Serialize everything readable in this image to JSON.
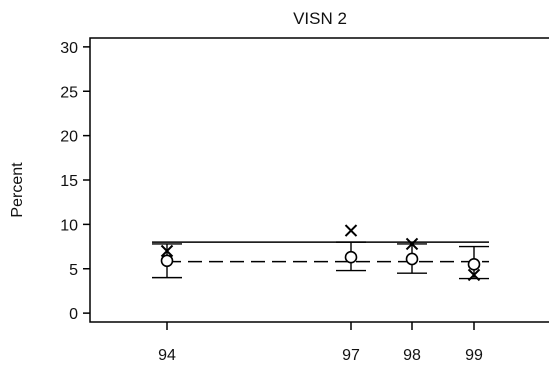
{
  "chart_data": {
    "type": "scatter",
    "title": "VISN 2",
    "xlabel": "",
    "ylabel": "Percent",
    "x_ticks": [
      "94",
      "97",
      "98",
      "99"
    ],
    "y_ticks": [
      0,
      5,
      10,
      15,
      20,
      25,
      30
    ],
    "ylim": [
      -1,
      31
    ],
    "grid": false,
    "legend": "none",
    "upper_limit_line": {
      "from": "94",
      "to": "99",
      "value": 8.0,
      "style": "solid"
    },
    "center_line": {
      "from": "94",
      "to": "99",
      "value": 5.8,
      "style": "dashed"
    },
    "circle_points": [
      {
        "x": "94",
        "value": 5.9,
        "lower": 4.0,
        "upper": 7.8
      },
      {
        "x": "97",
        "value": 6.3,
        "lower": 4.8,
        "upper": 8.0
      },
      {
        "x": "98",
        "value": 6.1,
        "lower": 4.5,
        "upper": 7.8
      },
      {
        "x": "99",
        "value": 5.5,
        "lower": 3.9,
        "upper": 7.5
      }
    ],
    "cross_points": [
      {
        "x": "94",
        "value": 7.0
      },
      {
        "x": "97",
        "value": 9.3
      },
      {
        "x": "98",
        "value": 7.8
      },
      {
        "x": "99",
        "value": 4.3
      }
    ]
  }
}
